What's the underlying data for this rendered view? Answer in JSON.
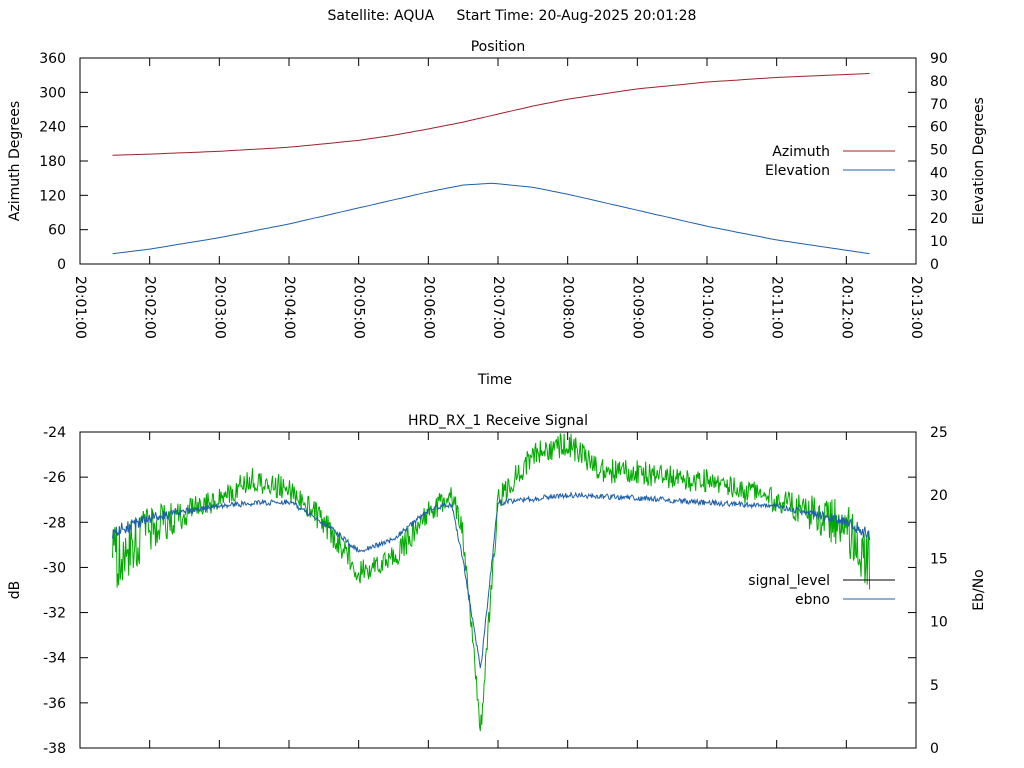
{
  "page": {
    "title": "Satellite: AQUA     Start Time: 20-Aug-2025 20:01:28"
  },
  "chart_data": [
    {
      "type": "line",
      "title": "Position",
      "xlabel": "Time",
      "ylabel": "Azimuth Degrees",
      "y2label": "Elevation Degrees",
      "xlim": [
        "20:01:00",
        "20:13:00"
      ],
      "ylim": [
        0,
        360
      ],
      "y2lim": [
        0,
        90
      ],
      "x_ticks": [
        "20:01:00",
        "20:02:00",
        "20:03:00",
        "20:04:00",
        "20:05:00",
        "20:06:00",
        "20:07:00",
        "20:08:00",
        "20:09:00",
        "20:10:00",
        "20:11:00",
        "20:12:00",
        "20:13:00"
      ],
      "y_ticks": [
        "0",
        "60",
        "120",
        "180",
        "240",
        "300",
        "360"
      ],
      "y2_ticks": [
        "0",
        "10",
        "20",
        "30",
        "40",
        "50",
        "60",
        "70",
        "80",
        "90"
      ],
      "grid": false,
      "legend": "right",
      "series": [
        {
          "name": "Azimuth",
          "axis": "left",
          "color": "#a0202a",
          "x": [
            "20:01:28",
            "20:02:00",
            "20:03:00",
            "20:04:00",
            "20:05:00",
            "20:05:30",
            "20:06:00",
            "20:06:30",
            "20:07:00",
            "20:07:30",
            "20:08:00",
            "20:09:00",
            "20:10:00",
            "20:11:00",
            "20:12:20"
          ],
          "y": [
            190,
            192,
            197,
            204,
            216,
            225,
            236,
            248,
            262,
            276,
            288,
            306,
            318,
            326,
            333
          ]
        },
        {
          "name": "Elevation",
          "axis": "right",
          "color": "#1f5fa8",
          "x": [
            "20:01:28",
            "20:02:00",
            "20:03:00",
            "20:04:00",
            "20:05:00",
            "20:06:00",
            "20:06:30",
            "20:06:55",
            "20:07:30",
            "20:08:00",
            "20:09:00",
            "20:10:00",
            "20:11:00",
            "20:12:20"
          ],
          "y": [
            4.5,
            6.5,
            11.5,
            17.5,
            24.5,
            31.5,
            34.5,
            35.3,
            33.5,
            30.5,
            23.5,
            16.5,
            10.5,
            4.5
          ]
        }
      ]
    },
    {
      "type": "line",
      "title": "HRD_RX_1 Receive Signal",
      "ylabel": "dB",
      "y2label": "Eb/No",
      "xlim": [
        "20:01:00",
        "20:13:00"
      ],
      "ylim": [
        -38,
        -24
      ],
      "y2lim": [
        0,
        25
      ],
      "y_ticks": [
        "-24",
        "-26",
        "-28",
        "-30",
        "-32",
        "-34",
        "-36",
        "-38"
      ],
      "y2_ticks": [
        "0",
        "5",
        "10",
        "15",
        "20",
        "25"
      ],
      "grid": false,
      "legend": "right",
      "series": [
        {
          "name": "signal_level",
          "axis": "left",
          "color": "#00aa00",
          "legend_color": "#000000",
          "x": [
            "20:01:28",
            "20:01:45",
            "20:02:00",
            "20:02:30",
            "20:03:00",
            "20:03:30",
            "20:04:00",
            "20:04:30",
            "20:05:00",
            "20:05:30",
            "20:05:50",
            "20:06:00",
            "20:06:20",
            "20:06:30",
            "20:06:45",
            "20:07:00",
            "20:07:30",
            "20:08:00",
            "20:08:30",
            "20:09:00",
            "20:09:30",
            "20:10:00",
            "20:10:30",
            "20:11:00",
            "20:11:30",
            "20:12:00",
            "20:12:20"
          ],
          "y": [
            -29.7,
            -29.0,
            -28.3,
            -27.6,
            -26.9,
            -26.1,
            -26.5,
            -28.0,
            -30.2,
            -29.6,
            -28.3,
            -27.6,
            -26.7,
            -28.6,
            -37.3,
            -27.0,
            -25.0,
            -24.5,
            -25.7,
            -25.8,
            -26.0,
            -26.2,
            -26.6,
            -27.0,
            -27.6,
            -28.2,
            -29.6
          ]
        },
        {
          "name": "ebno",
          "axis": "right",
          "color": "#1f5fa8",
          "x": [
            "20:01:28",
            "20:02:00",
            "20:03:00",
            "20:04:00",
            "20:04:30",
            "20:05:00",
            "20:05:30",
            "20:06:00",
            "20:06:20",
            "20:06:30",
            "20:06:45",
            "20:07:00",
            "20:08:00",
            "20:09:00",
            "20:10:00",
            "20:11:00",
            "20:12:00",
            "20:12:20"
          ],
          "y": [
            17.0,
            18.2,
            19.2,
            19.5,
            17.8,
            15.6,
            16.5,
            18.8,
            19.3,
            14.8,
            6.2,
            19.4,
            20.0,
            19.8,
            19.4,
            19.1,
            18.0,
            16.8
          ]
        }
      ]
    }
  ]
}
